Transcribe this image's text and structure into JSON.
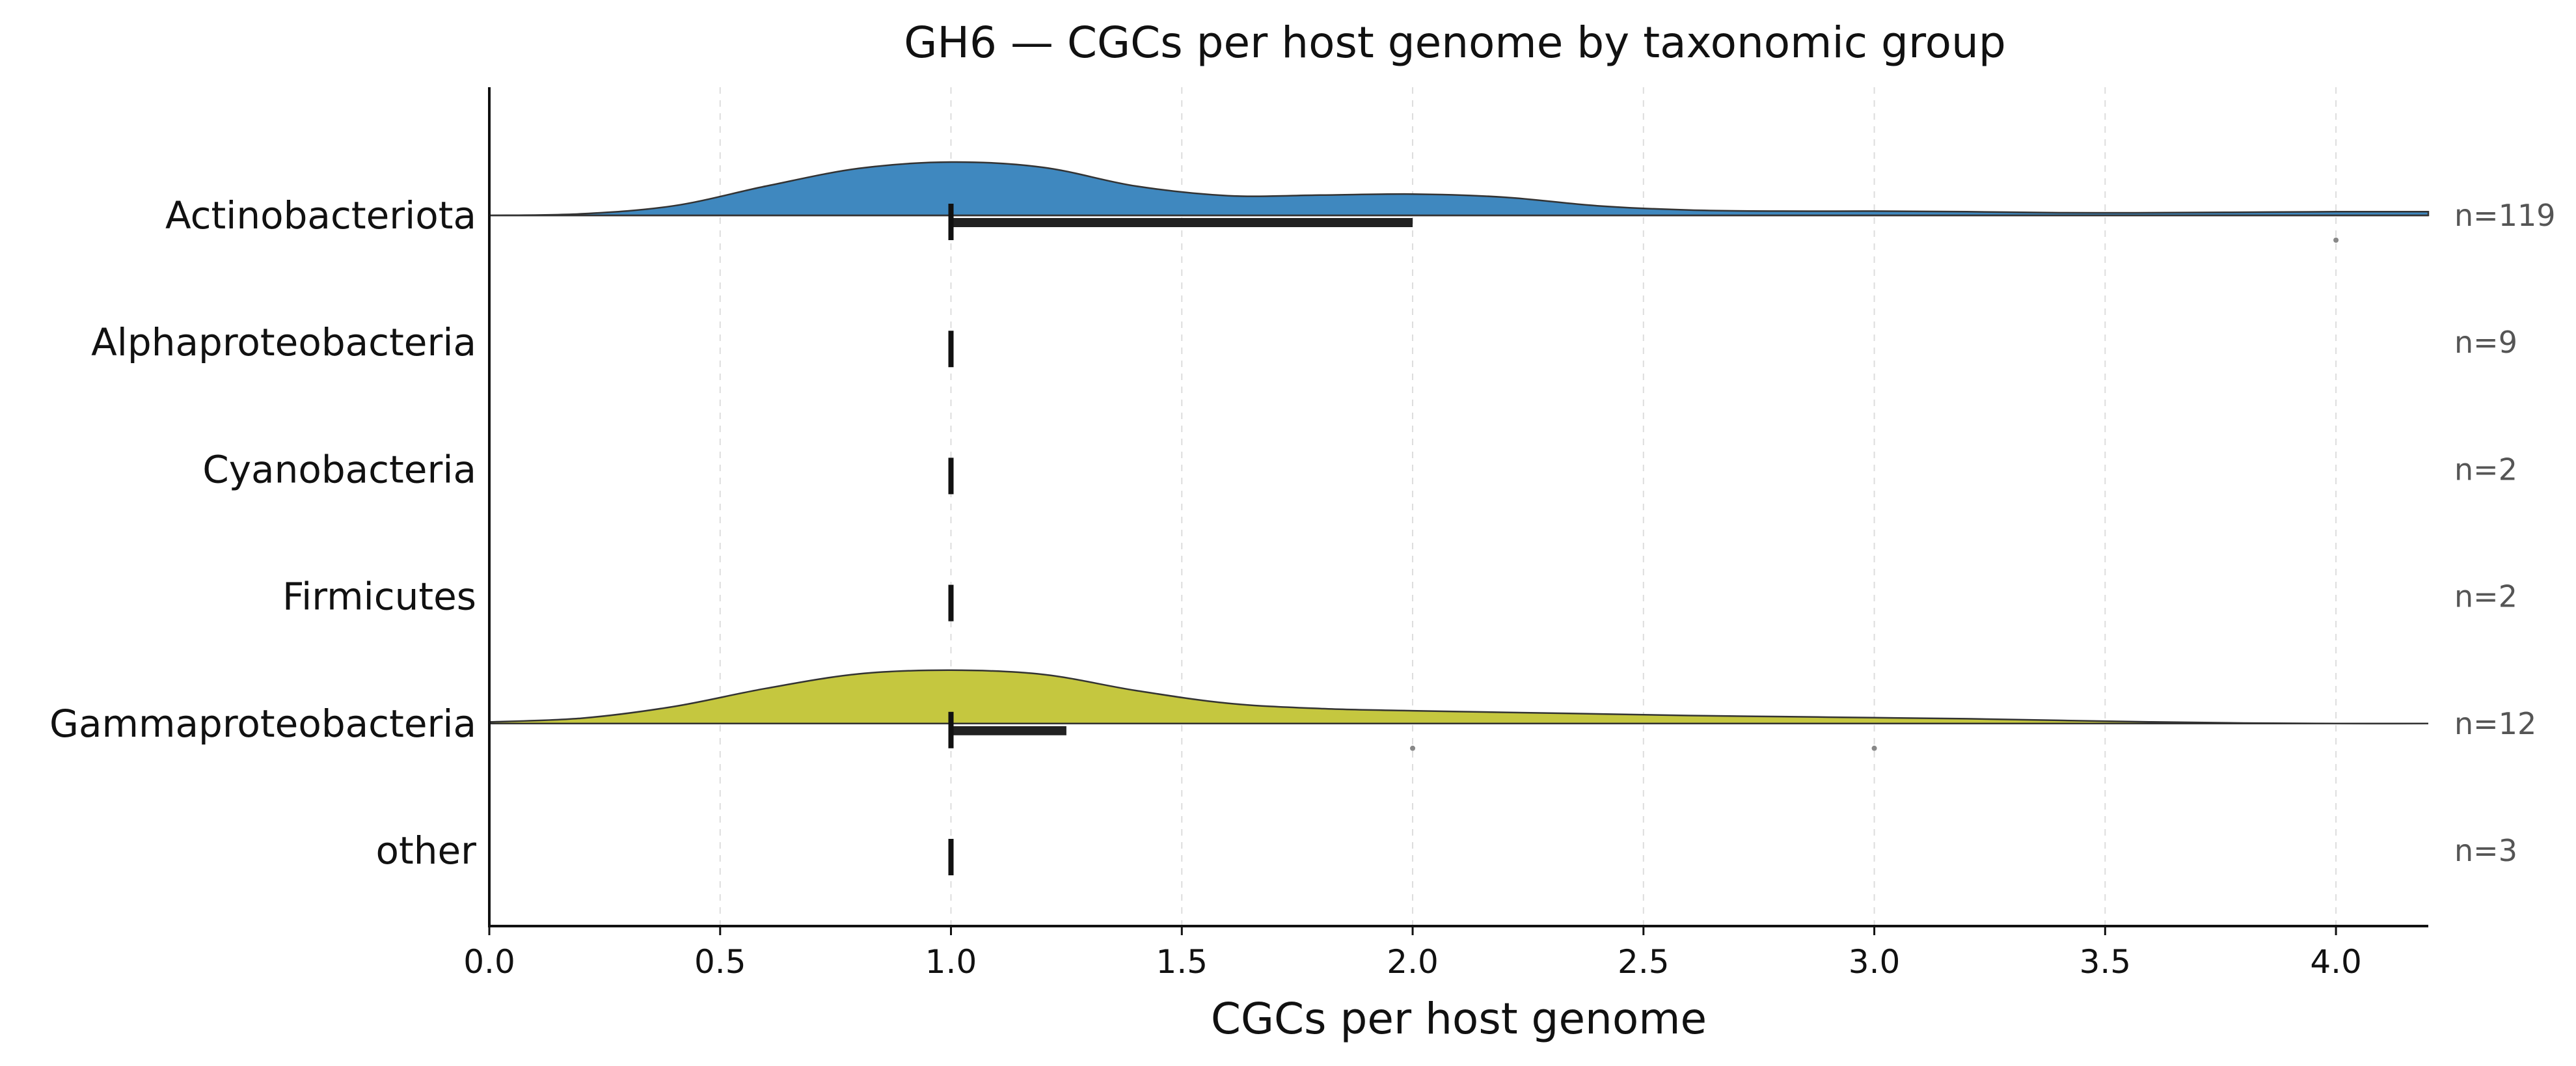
{
  "chart_data": {
    "type": "raincloud",
    "title": "GH6 — CGCs per host genome by taxonomic group",
    "xlabel": "CGCs per host genome",
    "ylabel": "",
    "xlim": [
      0.0,
      4.2
    ],
    "x_ticks": [
      "0.0",
      "0.5",
      "1.0",
      "1.5",
      "2.0",
      "2.5",
      "3.0",
      "3.5",
      "4.0"
    ],
    "x_tick_values": [
      0.0,
      0.5,
      1.0,
      1.5,
      2.0,
      2.5,
      3.0,
      3.5,
      4.0
    ],
    "grid": "vertical dashed",
    "groups": [
      {
        "name": "Actinobacteriota",
        "n_label": "n=119",
        "color": "#3f88bf",
        "median": 1.0,
        "iqr": [
          1.0,
          2.0
        ],
        "outliers": [
          4.0
        ],
        "density": {
          "x": [
            0.0,
            0.2,
            0.4,
            0.6,
            0.8,
            1.0,
            1.2,
            1.4,
            1.6,
            1.8,
            2.0,
            2.2,
            2.4,
            2.6,
            2.8,
            3.0,
            3.2,
            3.4,
            3.6,
            3.8,
            4.0,
            4.2
          ],
          "y": [
            0.0,
            0.03,
            0.18,
            0.55,
            0.88,
            1.0,
            0.9,
            0.55,
            0.37,
            0.38,
            0.4,
            0.34,
            0.18,
            0.1,
            0.08,
            0.08,
            0.07,
            0.05,
            0.05,
            0.06,
            0.07,
            0.07
          ]
        }
      },
      {
        "name": "Alphaproteobacteria",
        "n_label": "n=9",
        "color": "",
        "median": 1.0
      },
      {
        "name": "Cyanobacteria",
        "n_label": "n=2",
        "color": "",
        "median": 1.0
      },
      {
        "name": "Firmicutes",
        "n_label": "n=2",
        "color": "",
        "median": 1.0
      },
      {
        "name": "Gammaproteobacteria",
        "n_label": "n=12",
        "color": "#c5c73f",
        "median": 1.0,
        "iqr": [
          1.0,
          1.25
        ],
        "outliers": [
          2.0,
          3.0
        ],
        "density": {
          "x": [
            0.0,
            0.2,
            0.4,
            0.6,
            0.8,
            1.0,
            1.2,
            1.4,
            1.6,
            1.8,
            2.0,
            2.2,
            2.4,
            2.6,
            2.8,
            3.0,
            3.2,
            3.4,
            3.6,
            3.8,
            4.0,
            4.2
          ],
          "y": [
            0.03,
            0.1,
            0.32,
            0.66,
            0.93,
            1.0,
            0.92,
            0.62,
            0.38,
            0.28,
            0.24,
            0.21,
            0.18,
            0.15,
            0.13,
            0.11,
            0.09,
            0.06,
            0.03,
            0.01,
            0.0,
            0.0
          ]
        }
      },
      {
        "name": "other",
        "n_label": "n=3",
        "color": "",
        "median": 1.0
      }
    ]
  }
}
